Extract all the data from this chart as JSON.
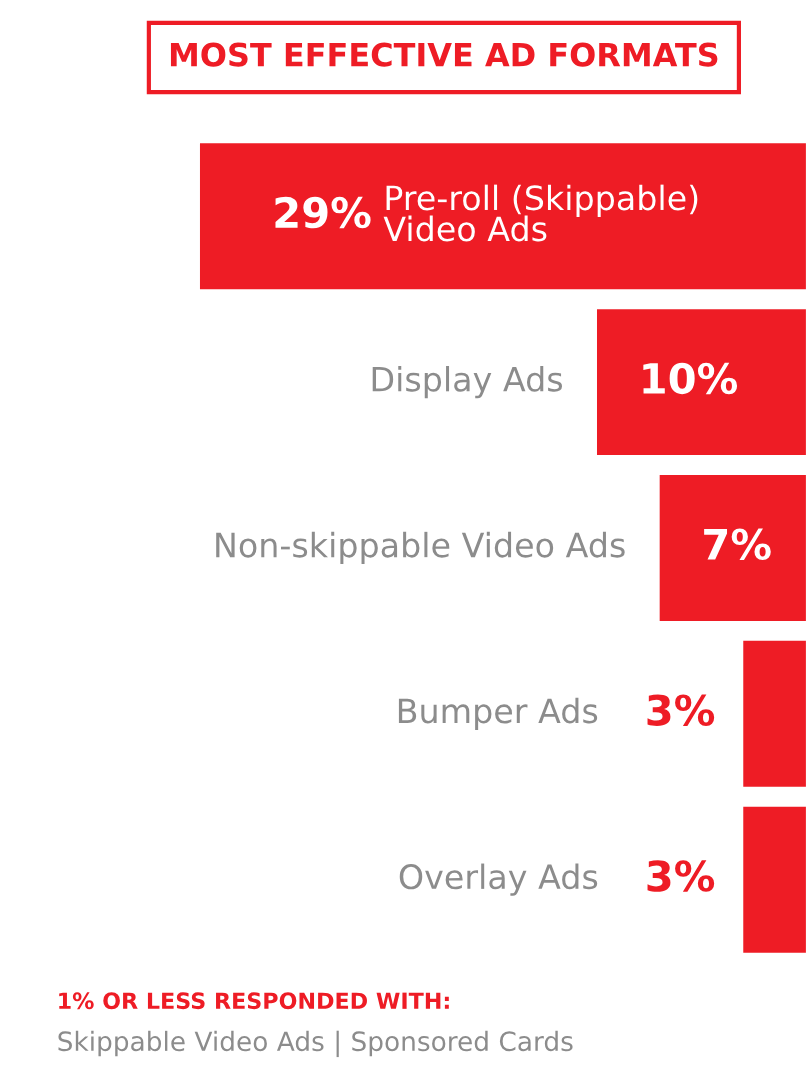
{
  "chart_data": {
    "type": "bar",
    "orientation": "horizontal",
    "title": "MOST EFFECTIVE AD FORMATS",
    "categories": [
      "Pre-roll (Skippable)\nVideo Ads",
      "Display Ads",
      "Non-skippable Video Ads",
      "Bumper Ads",
      "Overlay Ads"
    ],
    "values": [
      29,
      10,
      7,
      3,
      3
    ],
    "color": "#ee1c25",
    "value_labels": [
      "29%",
      "10%",
      "7%",
      "3%",
      "3%"
    ],
    "annotations": [
      "1% OR LESS RESPONDED WITH:",
      "Skippable Video Ads | Sponsored Cards"
    ]
  }
}
